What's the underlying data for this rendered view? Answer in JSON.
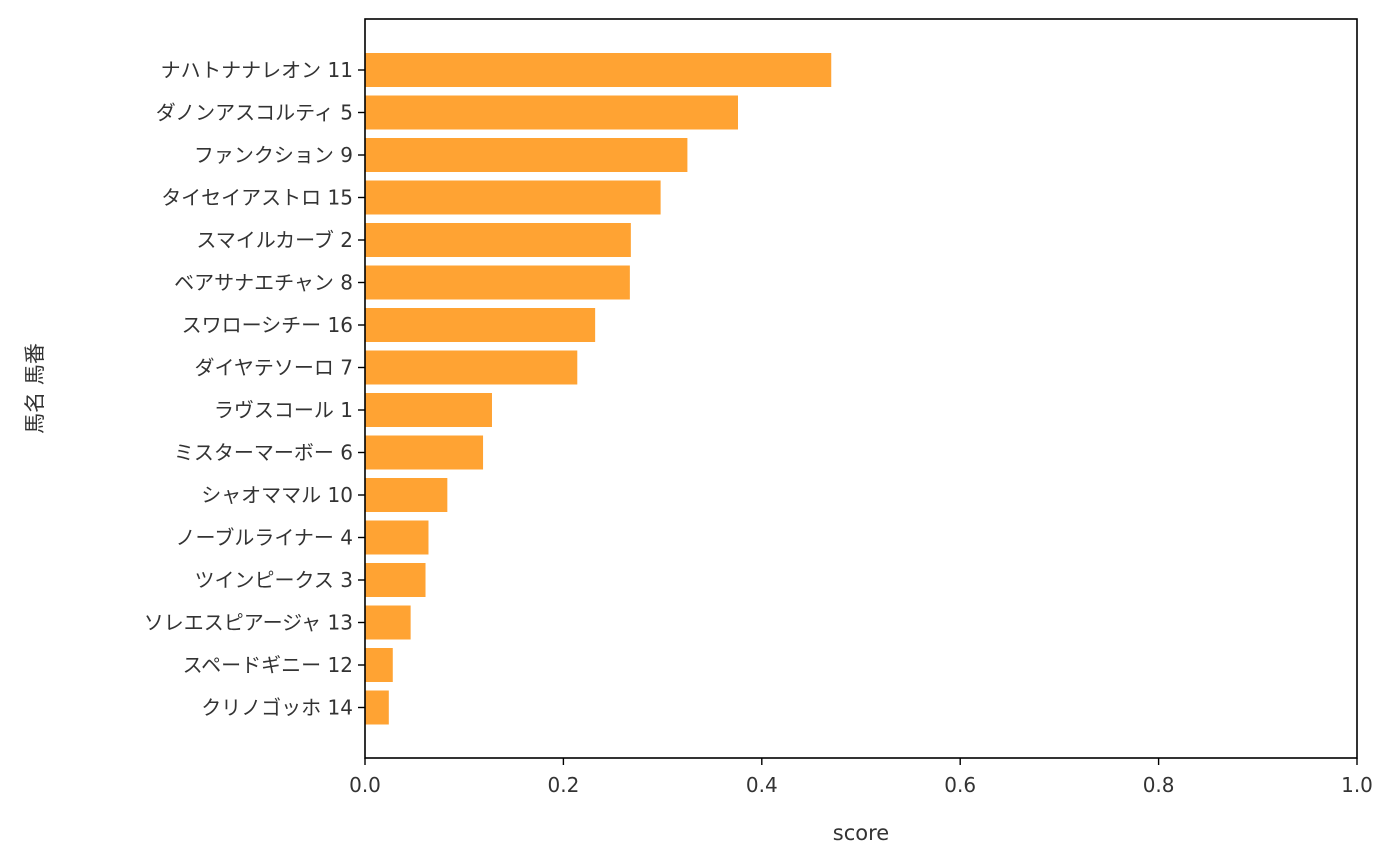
{
  "chart_data": {
    "type": "bar",
    "orientation": "horizontal",
    "categories": [
      "ナハトナナレオン 11",
      "ダノンアスコルティ 5",
      "ファンクション 9",
      "タイセイアストロ 15",
      "スマイルカーブ 2",
      "ベアサナエチャン 8",
      "スワローシチー 16",
      "ダイヤテソーロ 7",
      "ラヴスコール 1",
      "ミスターマーボー 6",
      "シャオママル 10",
      "ノーブルライナー 4",
      "ツインピークス 3",
      "ソレエスピアージャ 13",
      "スペードギニー 12",
      "クリノゴッホ 14"
    ],
    "values": [
      0.47,
      0.376,
      0.325,
      0.298,
      0.268,
      0.267,
      0.232,
      0.214,
      0.128,
      0.119,
      0.083,
      0.064,
      0.061,
      0.046,
      0.028,
      0.024
    ],
    "xlabel": "score",
    "ylabel": "馬名 馬番",
    "xlim": [
      0,
      1.0
    ],
    "xticks": [
      "0.0",
      "0.2",
      "0.4",
      "0.6",
      "0.8",
      "1.0"
    ],
    "xtick_values": [
      0,
      0.2,
      0.4,
      0.6,
      0.8,
      1.0
    ],
    "bar_color": "#ffa333",
    "grid": false,
    "legend": "none"
  }
}
